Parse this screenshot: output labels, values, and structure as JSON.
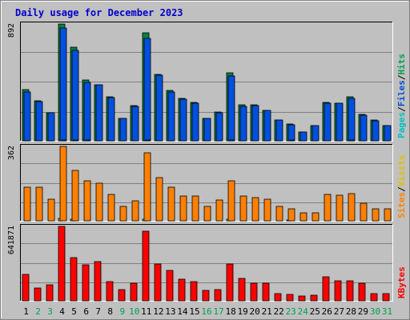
{
  "chart_data": {
    "type": "bar",
    "title": "Daily usage for December 2023",
    "days": [
      "1",
      "2",
      "3",
      "4",
      "5",
      "6",
      "7",
      "8",
      "9",
      "10",
      "11",
      "12",
      "13",
      "14",
      "15",
      "16",
      "17",
      "18",
      "19",
      "20",
      "21",
      "22",
      "23",
      "24",
      "25",
      "26",
      "27",
      "28",
      "29",
      "30",
      "31"
    ],
    "weekend_days": [
      "2",
      "3",
      "9",
      "10",
      "16",
      "17",
      "23",
      "24",
      "30",
      "31"
    ],
    "panels": [
      {
        "id": "hits-files-pages",
        "scale_label": "892",
        "side_labels": [
          {
            "text": "Pages",
            "color": "#00c0c0"
          },
          {
            "text": "/",
            "color": "#000000"
          },
          {
            "text": "Files",
            "color": "#0050d0"
          },
          {
            "text": "/",
            "color": "#000000"
          },
          {
            "text": "Hits",
            "color": "#00a050"
          }
        ],
        "max": 892,
        "series": [
          {
            "name": "Hits",
            "color": "#008040",
            "values": [
              390,
              305,
              216,
              892,
              714,
              465,
              428,
              335,
              173,
              267,
              826,
              507,
              383,
              322,
              295,
              174,
              217,
              517,
              272,
              274,
              234,
              161,
              127,
              70,
              117,
              293,
              289,
              335,
              199,
              157,
              116
            ]
          },
          {
            "name": "Files",
            "color": "#0050e0",
            "values": [
              370,
              300,
              212,
              860,
              690,
              443,
              428,
              329,
              172,
              263,
              781,
              500,
              370,
              315,
              290,
              172,
              212,
              497,
              265,
              270,
              230,
              157,
              124,
              70,
              115,
              290,
              286,
              323,
              195,
              155,
              115
            ]
          },
          {
            "name": "Pages",
            "color": "#00c0c0",
            "values": [
              0,
              0,
              0,
              5,
              4,
              8,
              0,
              0,
              0,
              0,
              4,
              0,
              0,
              0,
              0,
              0,
              0,
              4,
              0,
              0,
              0,
              0,
              5,
              0,
              0,
              0,
              0,
              3,
              0,
              0,
              0
            ]
          }
        ]
      },
      {
        "id": "visits-sites",
        "scale_label": "362",
        "side_labels": [
          {
            "text": "Sites",
            "color": "#ff8000"
          },
          {
            "text": "/",
            "color": "#000000"
          },
          {
            "text": "Visits",
            "color": "#e0c000"
          }
        ],
        "max": 362,
        "series": [
          {
            "name": "Visits",
            "color": "#e0c000",
            "values": [
              0,
              0,
              0,
              12,
              8,
              0,
              0,
              0,
              0,
              0,
              8,
              0,
              0,
              0,
              0,
              0,
              0,
              8,
              0,
              0,
              0,
              0,
              5,
              0,
              0,
              0,
              0,
              0,
              0,
              0,
              0
            ]
          },
          {
            "name": "Sites",
            "color": "#ff8000",
            "values": [
              162,
              162,
              105,
              362,
              245,
              196,
              183,
              129,
              70,
              97,
              332,
              210,
              163,
              121,
              121,
              70,
              100,
              195,
              121,
              111,
              107,
              70,
              60,
              40,
              40,
              127,
              125,
              132,
              85,
              60,
              60
            ]
          }
        ]
      },
      {
        "id": "kbytes",
        "scale_label": "641871",
        "side_labels": [
          {
            "text": "KBytes",
            "color": "#ff0000"
          }
        ],
        "max": 641871,
        "series": [
          {
            "name": "KBytes",
            "color": "#ff0000",
            "values": [
              225000,
              112000,
              138000,
              641871,
              370000,
              310000,
              337000,
              165000,
              100000,
              150000,
              598000,
              320000,
              263000,
              183000,
              165000,
              92000,
              100000,
              320000,
              195000,
              150000,
              150000,
              65000,
              55000,
              40000,
              47000,
              210000,
              173000,
              172000,
              150000,
              59000,
              59000
            ]
          }
        ]
      }
    ]
  },
  "colors": {
    "weekday_label": "#000000",
    "weekend_label": "#00a050",
    "title": "#0000cc",
    "plot_bg": "#c0c0c0"
  }
}
